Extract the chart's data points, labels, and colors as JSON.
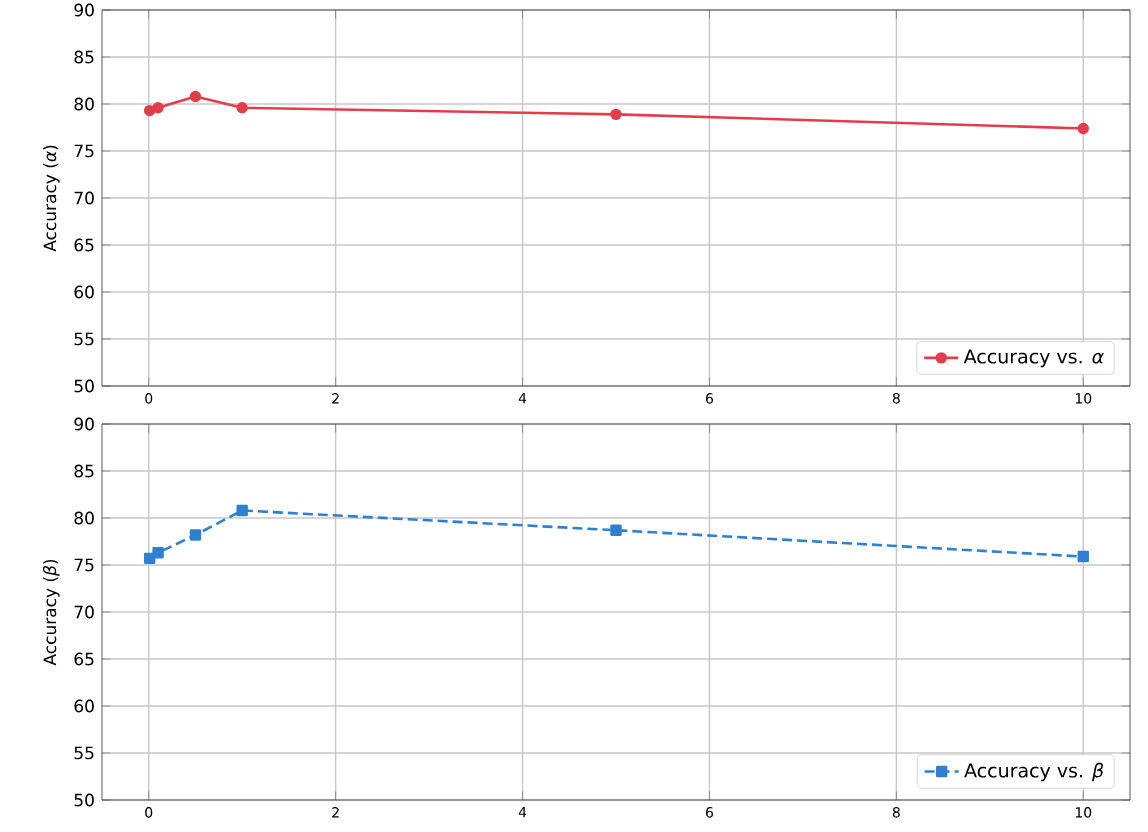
{
  "chart_data": [
    {
      "type": "line",
      "ylabel": "Accuracy (*α*)",
      "x": [
        0.01,
        0.1,
        0.5,
        1,
        5,
        10
      ],
      "series": [
        {
          "name": "Accuracy vs. *α*",
          "color": "#e33d4c",
          "values": [
            79.3,
            79.6,
            80.8,
            79.6,
            78.9,
            77.4
          ]
        }
      ],
      "xlim": [
        -0.5,
        10.5
      ],
      "ylim": [
        50,
        90
      ],
      "xticks": [
        0,
        2,
        4,
        6,
        8,
        10
      ],
      "yticks": [
        50,
        55,
        60,
        65,
        70,
        75,
        80,
        85,
        90
      ],
      "grid": true,
      "legend": "bottom right",
      "marker": "circle",
      "line_style": "solid"
    },
    {
      "type": "line",
      "ylabel": "Accuracy (*β*)",
      "x": [
        0.01,
        0.1,
        0.5,
        1,
        5,
        10
      ],
      "series": [
        {
          "name": "Accuracy vs. *β*",
          "color": "#2f80d0",
          "values": [
            75.7,
            76.3,
            78.2,
            80.8,
            78.7,
            75.9
          ]
        }
      ],
      "xlim": [
        -0.5,
        10.5
      ],
      "ylim": [
        50,
        90
      ],
      "xticks": [
        0,
        2,
        4,
        6,
        8,
        10
      ],
      "yticks": [
        50,
        55,
        60,
        65,
        70,
        75,
        80,
        85,
        90
      ],
      "grid": true,
      "legend": "bottom right",
      "marker": "square",
      "line_style": "dashed"
    }
  ]
}
